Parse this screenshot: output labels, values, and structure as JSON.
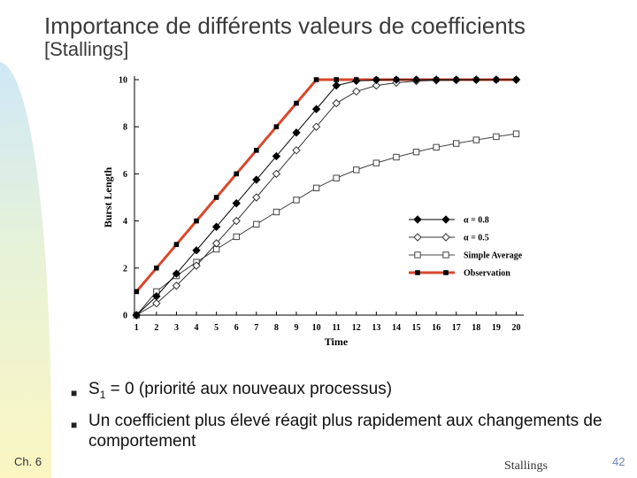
{
  "slide": {
    "title": "Importance de différents valeurs de coefficients",
    "subtitle": "[Stallings]",
    "bullets": [
      {
        "before": "S",
        "sub": "1",
        "after": " = 0 (priorité aux nouveaux processus)"
      },
      {
        "text": "Un coefficient plus élevé réagit plus rapidement aux changements de comportement"
      }
    ],
    "footer_left": "Ch. 6",
    "footer_center": "Stallings",
    "page_number": "42"
  },
  "colors": {
    "alpha08": "#000000",
    "alpha05": "#333333",
    "simple": "#444444",
    "observation": "#d9472b",
    "axis": "#000000"
  },
  "chart_data": {
    "type": "line",
    "xlabel": "Time",
    "ylabel": "Burst Length",
    "x": [
      1,
      2,
      3,
      4,
      5,
      6,
      7,
      8,
      9,
      10,
      11,
      12,
      13,
      14,
      15,
      16,
      17,
      18,
      19,
      20
    ],
    "xticks": [
      "1",
      "2",
      "3",
      "4",
      "5",
      "6",
      "7",
      "8",
      "9",
      "10",
      "11",
      "12",
      "13",
      "14",
      "15",
      "16",
      "17",
      "18",
      "19",
      "20"
    ],
    "yticks": [
      "0",
      "2",
      "4",
      "6",
      "8",
      "10"
    ],
    "xlim": [
      0.9,
      20.2
    ],
    "ylim": [
      0,
      10
    ],
    "legend_position": "right",
    "series": [
      {
        "name": "α = 0.8",
        "marker": "diamond-filled",
        "values": [
          0,
          0.8,
          1.76,
          2.75,
          3.75,
          4.75,
          5.75,
          6.75,
          7.75,
          8.75,
          9.75,
          9.95,
          9.99,
          10,
          10,
          10,
          10,
          10,
          10,
          10
        ]
      },
      {
        "name": "α = 0.5",
        "marker": "diamond-open",
        "values": [
          0,
          0.5,
          1.25,
          2.1,
          3.05,
          4.0,
          5.0,
          6.0,
          7.0,
          8.0,
          9.0,
          9.5,
          9.75,
          9.87,
          9.94,
          9.97,
          9.98,
          9.99,
          10,
          10
        ]
      },
      {
        "name": "Simple Average",
        "marker": "square-open",
        "values": [
          0,
          1.0,
          1.67,
          2.25,
          2.8,
          3.33,
          3.86,
          4.38,
          4.89,
          5.4,
          5.82,
          6.17,
          6.46,
          6.71,
          6.93,
          7.13,
          7.29,
          7.44,
          7.58,
          7.7
        ]
      },
      {
        "name": "Observation",
        "marker": "square-filled",
        "values": [
          1,
          2,
          3,
          4,
          5,
          6,
          7,
          8,
          9,
          10,
          10,
          10,
          10,
          10,
          10,
          10,
          10,
          10,
          10,
          10
        ]
      }
    ]
  }
}
